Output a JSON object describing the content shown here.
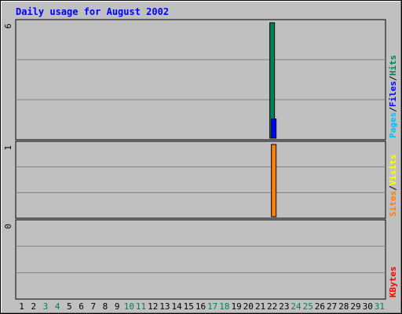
{
  "chart_data": {
    "type": "bar",
    "title": "Daily usage for August 2002",
    "days": [
      "1",
      "2",
      "3",
      "4",
      "5",
      "6",
      "7",
      "8",
      "9",
      "10",
      "11",
      "12",
      "13",
      "14",
      "15",
      "16",
      "17",
      "18",
      "19",
      "20",
      "21",
      "22",
      "23",
      "24",
      "25",
      "26",
      "27",
      "28",
      "29",
      "30",
      "31"
    ],
    "weekend_days": [
      "3",
      "4",
      "10",
      "11",
      "17",
      "18",
      "24",
      "25",
      "31"
    ],
    "panels": [
      {
        "name": "hits-files-pages",
        "max_label": "6",
        "ylim": [
          0,
          6
        ],
        "legend": [
          {
            "text": "Hits",
            "color": "#00805c"
          },
          {
            "text": "/",
            "color": "#000000"
          },
          {
            "text": "Files",
            "color": "#0000ff"
          },
          {
            "text": "/",
            "color": "#000000"
          },
          {
            "text": "Pages",
            "color": "#00c0ff"
          }
        ],
        "series": [
          {
            "key": "Hits",
            "color": "#00805c",
            "values": [
              0,
              0,
              0,
              0,
              0,
              0,
              0,
              0,
              0,
              0,
              0,
              0,
              0,
              0,
              0,
              0,
              0,
              0,
              0,
              0,
              0,
              6,
              0,
              0,
              0,
              0,
              0,
              0,
              0,
              0,
              0
            ]
          },
          {
            "key": "Files",
            "color": "#0000ff",
            "values": [
              0,
              0,
              0,
              0,
              0,
              0,
              0,
              0,
              0,
              0,
              0,
              0,
              0,
              0,
              0,
              0,
              0,
              0,
              0,
              0,
              0,
              1,
              0,
              0,
              0,
              0,
              0,
              0,
              0,
              0,
              0
            ]
          },
          {
            "key": "Pages",
            "color": "#00c0ff",
            "values": [
              0,
              0,
              0,
              0,
              0,
              0,
              0,
              0,
              0,
              0,
              0,
              0,
              0,
              0,
              0,
              0,
              0,
              0,
              0,
              0,
              0,
              0,
              0,
              0,
              0,
              0,
              0,
              0,
              0,
              0,
              0
            ]
          }
        ]
      },
      {
        "name": "visits-sites",
        "max_label": "1",
        "ylim": [
          0,
          1
        ],
        "legend": [
          {
            "text": "Visits",
            "color": "#ffff00"
          },
          {
            "text": "/",
            "color": "#000000"
          },
          {
            "text": "Sites",
            "color": "#ff8000"
          }
        ],
        "series": [
          {
            "key": "Visits",
            "color": "#ffff00",
            "values": [
              0,
              0,
              0,
              0,
              0,
              0,
              0,
              0,
              0,
              0,
              0,
              0,
              0,
              0,
              0,
              0,
              0,
              0,
              0,
              0,
              0,
              0,
              0,
              0,
              0,
              0,
              0,
              0,
              0,
              0,
              0
            ]
          },
          {
            "key": "Sites",
            "color": "#ff8000",
            "values": [
              0,
              0,
              0,
              0,
              0,
              0,
              0,
              0,
              0,
              0,
              0,
              0,
              0,
              0,
              0,
              0,
              0,
              0,
              0,
              0,
              0,
              1,
              0,
              0,
              0,
              0,
              0,
              0,
              0,
              0,
              0
            ]
          }
        ]
      },
      {
        "name": "kbytes",
        "max_label": "0",
        "ylim": [
          0,
          1
        ],
        "legend": [
          {
            "text": "KBytes",
            "color": "#ff0000"
          }
        ],
        "series": [
          {
            "key": "KBytes",
            "color": "#ff0000",
            "values": [
              0,
              0,
              0,
              0,
              0,
              0,
              0,
              0,
              0,
              0,
              0,
              0,
              0,
              0,
              0,
              0,
              0,
              0,
              0,
              0,
              0,
              0,
              0,
              0,
              0,
              0,
              0,
              0,
              0,
              0,
              0
            ]
          }
        ]
      }
    ],
    "colors": {
      "title": "#0000ff",
      "background": "#c0c0c0",
      "gridline": "#808080",
      "weekday_label": "#000000",
      "weekend_label": "#00805c"
    }
  }
}
